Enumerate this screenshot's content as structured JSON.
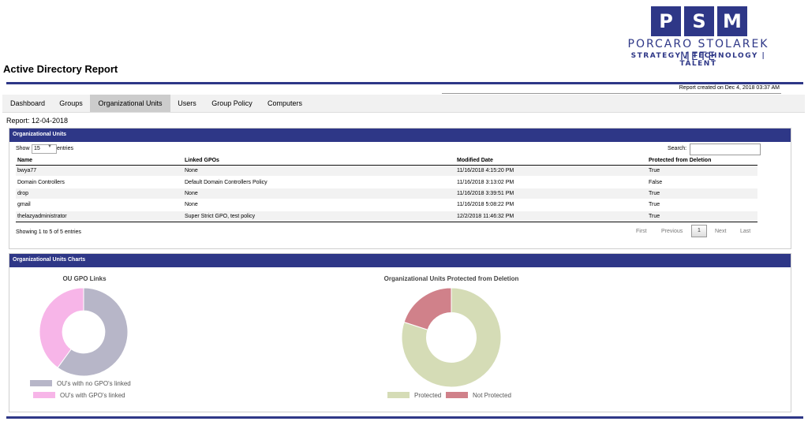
{
  "logo": {
    "letters": [
      "P",
      "S",
      "M"
    ],
    "name": "PORCARO STOLAREK METE",
    "tagline": "STRATEGY | TECHNOLOGY | TALENT",
    "color": "#2e3787"
  },
  "app_title": "Active Directory Report",
  "report_created": "Report created on Dec 4, 2018 03:37 AM",
  "tabs": [
    {
      "label": "Dashboard",
      "active": false
    },
    {
      "label": "Groups",
      "active": false
    },
    {
      "label": "Organizational Units",
      "active": true
    },
    {
      "label": "Users",
      "active": false
    },
    {
      "label": "Group Policy",
      "active": false
    },
    {
      "label": "Computers",
      "active": false
    }
  ],
  "report_date": "Report: 12-04-2018",
  "ou_panel": {
    "title": "Organizational Units",
    "show_label": "Show",
    "show_value": "15",
    "entries_label": "entries",
    "search_label": "Search:",
    "search_value": "",
    "columns": [
      "Name",
      "Linked GPOs",
      "Modified Date",
      "Protected from Deletion"
    ],
    "rows": [
      [
        "bwya77",
        "None",
        "11/16/2018 4:15:20 PM",
        "True"
      ],
      [
        "Domain Controllers",
        "Default Domain Controllers Policy",
        "11/16/2018 3:13:02 PM",
        "False"
      ],
      [
        "drop",
        "None",
        "11/16/2018 3:39:51 PM",
        "True"
      ],
      [
        "gmail",
        "None",
        "11/16/2018 5:08:22 PM",
        "True"
      ],
      [
        "thelazyadministrator",
        "Super Strict GPO, test policy",
        "12/2/2018 11:46:32 PM",
        "True"
      ]
    ],
    "showing": "Showing 1 to 5 of 5 entries",
    "pager": {
      "first": "First",
      "previous": "Previous",
      "page": "1",
      "next": "Next",
      "last": "Last"
    }
  },
  "charts_panel": {
    "title": "Organizational Units Charts",
    "chart_data": [
      {
        "type": "pie",
        "donut": true,
        "title": "OU GPO Links",
        "categories": [
          "OU's with no GPO's linked",
          "OU's with GPO's linked"
        ],
        "values": [
          3,
          2
        ],
        "colors": [
          "#b7b6c8",
          "#f7b5e8"
        ],
        "legend": "bottom"
      },
      {
        "type": "pie",
        "donut": true,
        "title": "Organizational Units Protected from Deletion",
        "categories": [
          "Protected",
          "Not Protected"
        ],
        "values": [
          4,
          1
        ],
        "colors": [
          "#d5dcb6",
          "#d0818a"
        ],
        "legend": "bottom"
      }
    ]
  }
}
